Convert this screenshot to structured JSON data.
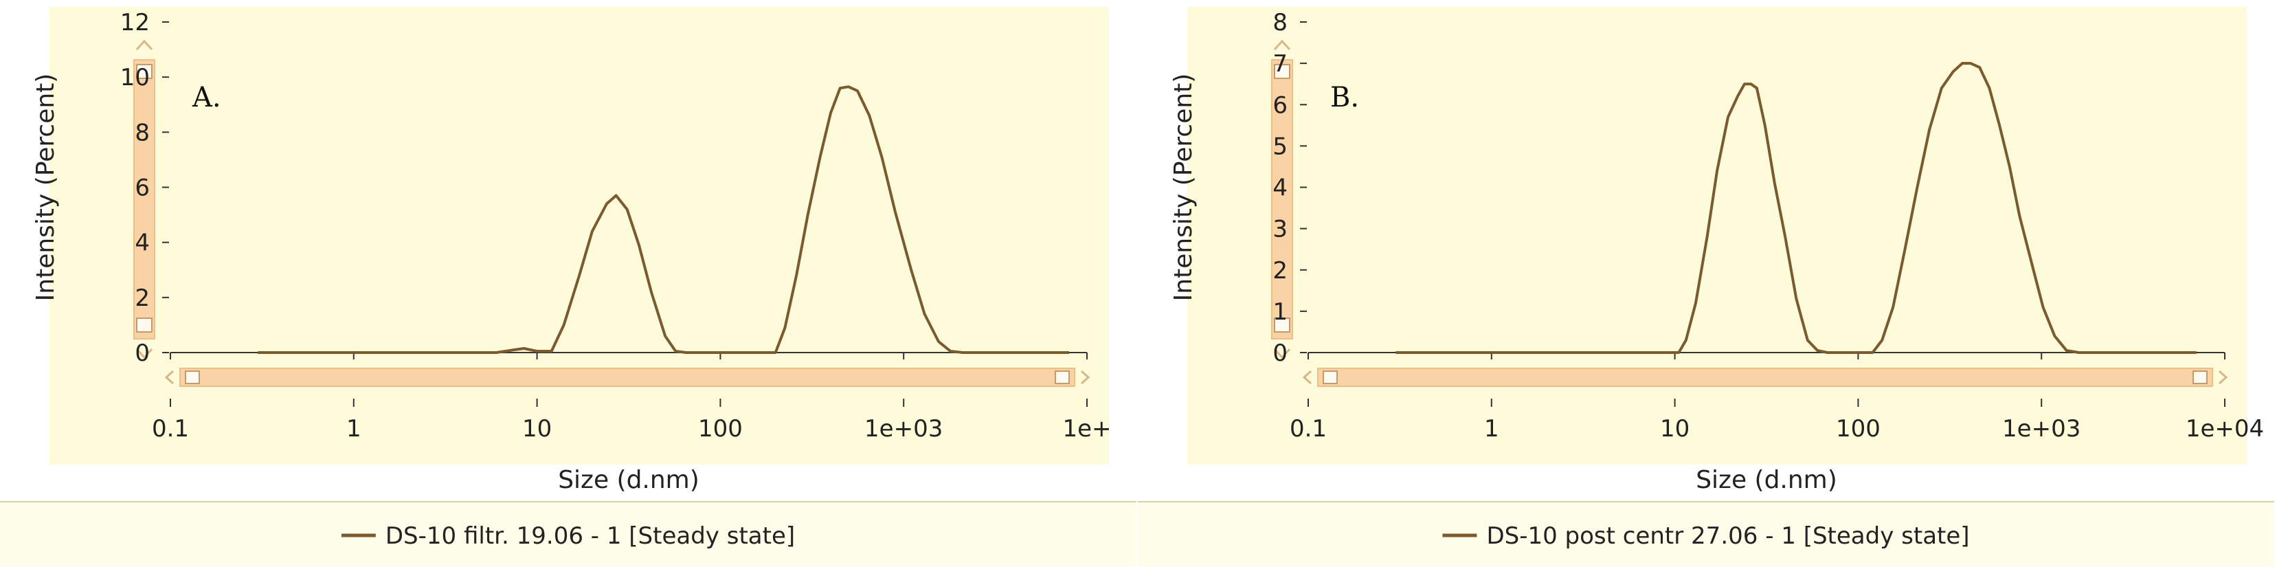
{
  "colors": {
    "plot_background": "#fdfbd9",
    "legend_background": "#fefde9",
    "series": "#7a5a2e",
    "scrollbar": "#f9d2a5",
    "scrollbar_edge": "#eebe87",
    "axis": "#333333"
  },
  "chart_data": [
    {
      "type": "line",
      "panel_label": "A.",
      "xlabel": "Size (d.nm)",
      "ylabel": "Intensity (Percent)",
      "x_scale": "log",
      "xlim": [
        0.1,
        10000
      ],
      "ylim": [
        0,
        12
      ],
      "x_ticks": [
        0.1,
        1,
        10,
        100,
        1000,
        10000
      ],
      "x_tick_labels": [
        "0.1",
        "1",
        "10",
        "100",
        "1e+03",
        "1e+"
      ],
      "y_ticks": [
        0,
        2,
        4,
        6,
        8,
        10,
        12
      ],
      "y_tick_labels": [
        "0",
        "2",
        "4",
        "6",
        "8",
        "10",
        "12"
      ],
      "grid": false,
      "legend": "bottom-center",
      "series": [
        {
          "name": "DS-10 filtr. 19.06 - 1 [Steady state]",
          "x": [
            0.3,
            6,
            7.5,
            8.5,
            10,
            12,
            14,
            17,
            20,
            24,
            27,
            31,
            36,
            42,
            50,
            57,
            65,
            200,
            225,
            260,
            300,
            350,
            400,
            450,
            500,
            560,
            650,
            760,
            900,
            1100,
            1300,
            1550,
            1800,
            2100,
            8000
          ],
          "y": [
            0,
            0,
            0.1,
            0.15,
            0.05,
            0.05,
            1,
            2.8,
            4.4,
            5.4,
            5.7,
            5.2,
            3.9,
            2.2,
            0.6,
            0.05,
            0,
            0,
            0.9,
            2.8,
            5,
            7.1,
            8.7,
            9.6,
            9.65,
            9.5,
            8.6,
            7.1,
            5.1,
            3,
            1.4,
            0.4,
            0.05,
            0,
            0
          ]
        }
      ]
    },
    {
      "type": "line",
      "panel_label": "B.",
      "xlabel": "Size (d.nm)",
      "ylabel": "Intensity (Percent)",
      "x_scale": "log",
      "xlim": [
        0.1,
        10000
      ],
      "ylim": [
        0,
        8
      ],
      "x_ticks": [
        0.1,
        1,
        10,
        100,
        1000,
        10000
      ],
      "x_tick_labels": [
        "0.1",
        "1",
        "10",
        "100",
        "1e+03",
        "1e+04"
      ],
      "y_ticks": [
        0,
        1,
        2,
        3,
        4,
        5,
        6,
        7,
        8
      ],
      "y_tick_labels": [
        "0",
        "1",
        "2",
        "3",
        "4",
        "5",
        "6",
        "7",
        "8"
      ],
      "grid": false,
      "legend": "bottom-center",
      "series": [
        {
          "name": "DS-10 post centr 27.06 - 1 [Steady state]",
          "x": [
            0.3,
            10.5,
            11.5,
            13,
            15,
            17,
            19.5,
            22,
            24,
            26,
            28,
            31,
            35,
            40,
            46,
            53,
            60,
            68,
            120,
            135,
            155,
            180,
            210,
            245,
            285,
            330,
            370,
            410,
            460,
            520,
            590,
            670,
            760,
            880,
            1020,
            1180,
            1370,
            1600,
            1900,
            7000
          ],
          "y": [
            0,
            0,
            0.3,
            1.2,
            2.8,
            4.4,
            5.7,
            6.2,
            6.5,
            6.5,
            6.4,
            5.5,
            4.1,
            2.8,
            1.3,
            0.3,
            0.05,
            0,
            0,
            0.3,
            1.1,
            2.5,
            4,
            5.4,
            6.4,
            6.8,
            7,
            7,
            6.9,
            6.4,
            5.5,
            4.5,
            3.3,
            2.2,
            1.1,
            0.4,
            0.05,
            0,
            0,
            0
          ]
        }
      ]
    }
  ]
}
